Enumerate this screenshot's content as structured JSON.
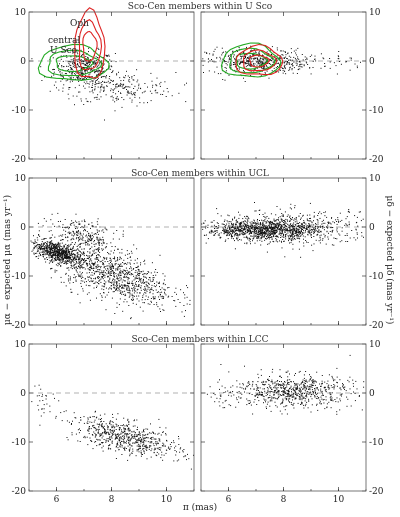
{
  "chart_data": [
    {
      "type": "scatter",
      "title": "Sco-Cen members within U Sco",
      "xlim": [
        5,
        11
      ],
      "ylim": [
        -20,
        10
      ],
      "xticks": [
        6,
        8,
        10
      ],
      "yticks": [
        10,
        0,
        -10,
        -20
      ],
      "annotations": [
        {
          "text": "Oph",
          "color": "#dd2222"
        },
        {
          "text": "central",
          "color": "#22aa22"
        },
        {
          "text": "U Sco",
          "color": "#22aa22"
        }
      ],
      "panels": [
        {
          "side": "left",
          "ytick_labels": "left",
          "clusters": [
            {
              "cx": 7.0,
              "cy": -1.5,
              "sx": 0.55,
              "sy": 1.8,
              "n": 450
            },
            {
              "cx": 8.3,
              "cy": -5.5,
              "sx": 1.0,
              "sy": 1.6,
              "n": 220
            }
          ],
          "contours": [
            {
              "color": "#22aa22",
              "cx": 6.6,
              "cy": -0.5,
              "levels": [
                [
                  1.25,
                  3.6
                ],
                [
                  0.95,
                  2.6
                ],
                [
                  0.65,
                  1.6
                ]
              ]
            },
            {
              "color": "#dd2222",
              "cx": 7.2,
              "cy": 3.0,
              "levels": [
                [
                  0.55,
                  7.0
                ],
                [
                  0.4,
                  5.0
                ],
                [
                  0.25,
                  3.0
                ]
              ]
            }
          ]
        },
        {
          "side": "right",
          "ytick_labels": "right",
          "clusters": [
            {
              "cx": 7.0,
              "cy": 0.0,
              "sx": 0.9,
              "sy": 1.3,
              "n": 500
            },
            {
              "cx": 8.5,
              "cy": -0.3,
              "sx": 1.3,
              "sy": 0.9,
              "n": 100
            }
          ],
          "contours": [
            {
              "color": "#22aa22",
              "cx": 6.8,
              "cy": 0.0,
              "levels": [
                [
                  1.05,
                  3.4
                ],
                [
                  0.8,
                  2.5
                ],
                [
                  0.55,
                  1.6
                ]
              ]
            },
            {
              "color": "#dd2222",
              "cx": 7.1,
              "cy": 0.0,
              "levels": [
                [
                  0.85,
                  3.0
                ],
                [
                  0.6,
                  2.1
                ],
                [
                  0.35,
                  1.2
                ]
              ]
            }
          ]
        }
      ]
    },
    {
      "type": "scatter",
      "title": "Sco-Cen members within UCL",
      "xlim": [
        5,
        11
      ],
      "ylim": [
        -20,
        10
      ],
      "xticks": [
        6,
        8,
        10
      ],
      "yticks": [
        10,
        0,
        -10,
        -20
      ],
      "panels": [
        {
          "side": "left",
          "ytick_labels": "left",
          "clusters": [
            {
              "cx": 6.0,
              "cy": -5.0,
              "sx": 0.45,
              "sy": 1.0,
              "n": 700
            },
            {
              "cx": 8.0,
              "cy": -6.5,
              "sx": 1.1,
              "sy": 2.5,
              "n": 1000
            },
            {
              "cx": 7.0,
              "cy": 0.0,
              "sx": 0.6,
              "sy": 1.5,
              "n": 250
            }
          ]
        },
        {
          "side": "right",
          "ytick_labels": "right",
          "clusters": [
            {
              "cx": 7.2,
              "cy": -0.5,
              "sx": 1.0,
              "sy": 1.0,
              "n": 1000
            },
            {
              "cx": 8.5,
              "cy": 0.0,
              "sx": 1.4,
              "sy": 1.8,
              "n": 500
            }
          ]
        }
      ]
    },
    {
      "type": "scatter",
      "title": "Sco-Cen members within LCC",
      "xlim": [
        5,
        11
      ],
      "ylim": [
        -20,
        10
      ],
      "xticks": [
        6,
        8,
        10
      ],
      "yticks": [
        10,
        0,
        -10,
        -20
      ],
      "panels": [
        {
          "side": "left",
          "ytick_labels": "left",
          "clusters": [
            {
              "cx": 8.5,
              "cy": -9.0,
              "sx": 1.0,
              "sy": 1.6,
              "n": 650
            },
            {
              "cx": 5.5,
              "cy": -5.0,
              "sx": 0.3,
              "sy": 1.5,
              "n": 25
            }
          ]
        },
        {
          "side": "right",
          "ytick_labels": "right",
          "clusters": [
            {
              "cx": 8.3,
              "cy": 0.5,
              "sx": 1.1,
              "sy": 1.7,
              "n": 700
            },
            {
              "cx": 5.7,
              "cy": -1.5,
              "sx": 0.3,
              "sy": 1.0,
              "n": 20
            }
          ]
        }
      ]
    }
  ],
  "axes": {
    "xlabel": "π (mas)",
    "ylabel_left": "μα − expected μα (mas yr⁻¹)",
    "ylabel_right": "μδ − expected μδ (mas yr⁻¹)"
  }
}
